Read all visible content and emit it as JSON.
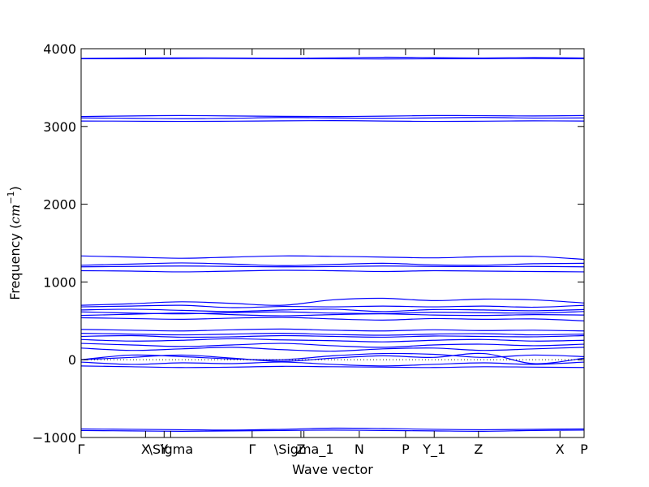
{
  "chart_data": {
    "type": "line",
    "title": "",
    "xlabel": "Wave vector",
    "ylabel": "Frequency ($cm^{-1}$)",
    "ylabel_display": {
      "main": "Frequency (",
      "unit_base": "cm",
      "unit_exp": "−1",
      "close": ")"
    },
    "ylim": [
      -1000,
      4000
    ],
    "yticks": [
      -1000,
      0,
      1000,
      2000,
      3000,
      4000
    ],
    "ytick_labels": [
      "−1000",
      "0",
      "1000",
      "2000",
      "3000",
      "4000"
    ],
    "xlim": [
      0,
      1
    ],
    "xticks": [
      {
        "label": "Γ",
        "x": 0.0
      },
      {
        "label": "X",
        "x": 0.128
      },
      {
        "label": "Y",
        "x": 0.165
      },
      {
        "label": "\\Sigma",
        "x": 0.178
      },
      {
        "label": "Γ",
        "x": 0.34
      },
      {
        "label": "Z",
        "x": 0.437
      },
      {
        "label": "\\Sigma_1",
        "x": 0.443
      },
      {
        "label": "N",
        "x": 0.553
      },
      {
        "label": "P",
        "x": 0.645
      },
      {
        "label": "Y_1",
        "x": 0.702
      },
      {
        "label": "Z",
        "x": 0.79
      },
      {
        "label": "X",
        "x": 0.952
      },
      {
        "label": "P",
        "x": 1.0
      }
    ],
    "grid": false,
    "legend": "none",
    "line_color": "#0000ff",
    "zero_line": {
      "y": 0,
      "style": "dotted",
      "color": "#000000"
    },
    "series": [
      {
        "values": [
          3870,
          3872,
          3875,
          3875,
          3872,
          3870,
          3868,
          3870,
          3872,
          3875,
          3870
        ]
      },
      {
        "values": [
          3875,
          3880,
          3882,
          3880,
          3878,
          3882,
          3890,
          3885,
          3880,
          3885,
          3880
        ]
      },
      {
        "values": [
          3128,
          3135,
          3140,
          3135,
          3130,
          3128,
          3132,
          3140,
          3138,
          3135,
          3140
        ]
      },
      {
        "values": [
          3110,
          3105,
          3100,
          3105,
          3115,
          3110,
          3105,
          3110,
          3115,
          3108,
          3110
        ]
      },
      {
        "values": [
          3070,
          3068,
          3065,
          3068,
          3072,
          3075,
          3070,
          3065,
          3068,
          3072,
          3070
        ]
      },
      {
        "values": [
          1335,
          1320,
          1305,
          1320,
          1335,
          1330,
          1320,
          1310,
          1325,
          1330,
          1290
        ]
      },
      {
        "values": [
          1215,
          1230,
          1245,
          1230,
          1210,
          1225,
          1240,
          1220,
          1215,
          1235,
          1240
        ]
      },
      {
        "values": [
          1195,
          1200,
          1205,
          1200,
          1195,
          1198,
          1205,
          1200,
          1198,
          1200,
          1195
        ]
      },
      {
        "values": [
          1145,
          1140,
          1130,
          1140,
          1150,
          1145,
          1135,
          1145,
          1140,
          1135,
          1130
        ]
      },
      {
        "values": [
          700,
          720,
          745,
          725,
          700,
          770,
          790,
          760,
          780,
          770,
          730
        ]
      },
      {
        "values": [
          680,
          690,
          700,
          670,
          685,
          680,
          690,
          680,
          690,
          675,
          700
        ]
      },
      {
        "values": [
          640,
          650,
          635,
          620,
          640,
          650,
          620,
          645,
          640,
          630,
          645
        ]
      },
      {
        "values": [
          615,
          600,
          590,
          605,
          615,
          600,
          595,
          610,
          605,
          600,
          620
        ]
      },
      {
        "values": [
          570,
          585,
          600,
          580,
          565,
          580,
          590,
          575,
          570,
          580,
          575
        ]
      },
      {
        "values": [
          540,
          530,
          520,
          535,
          545,
          525,
          510,
          530,
          520,
          525,
          500
        ]
      },
      {
        "values": [
          390,
          380,
          370,
          385,
          395,
          380,
          370,
          385,
          375,
          380,
          370
        ]
      },
      {
        "values": [
          340,
          330,
          320,
          330,
          340,
          325,
          315,
          330,
          335,
          320,
          330
        ]
      },
      {
        "values": [
          300,
          310,
          290,
          295,
          310,
          300,
          290,
          305,
          300,
          295,
          310
        ]
      },
      {
        "values": [
          260,
          240,
          250,
          270,
          255,
          245,
          230,
          250,
          260,
          240,
          250
        ]
      },
      {
        "values": [
          210,
          190,
          170,
          190,
          210,
          180,
          160,
          190,
          200,
          180,
          200
        ]
      },
      {
        "values": [
          150,
          120,
          140,
          160,
          130,
          110,
          140,
          150,
          120,
          140,
          160
        ]
      },
      {
        "values": [
          0,
          60,
          40,
          10,
          0,
          50,
          80,
          70,
          30,
          60,
          40
        ]
      },
      {
        "values": [
          0,
          30,
          60,
          20,
          -20,
          20,
          50,
          30,
          80,
          -50,
          20
        ]
      },
      {
        "values": [
          -30,
          -60,
          -40,
          -50,
          -30,
          -60,
          -80,
          -60,
          -40,
          -60,
          -30
        ]
      },
      {
        "values": [
          -80,
          -90,
          -100,
          -95,
          -85,
          -90,
          -95,
          -100,
          -90,
          -95,
          -100
        ]
      },
      {
        "values": [
          -890,
          -895,
          -900,
          -905,
          -895,
          -880,
          -885,
          -895,
          -900,
          -895,
          -890
        ]
      },
      {
        "values": [
          -910,
          -915,
          -920,
          -915,
          -910,
          -905,
          -910,
          -915,
          -920,
          -910,
          -905
        ]
      }
    ]
  }
}
